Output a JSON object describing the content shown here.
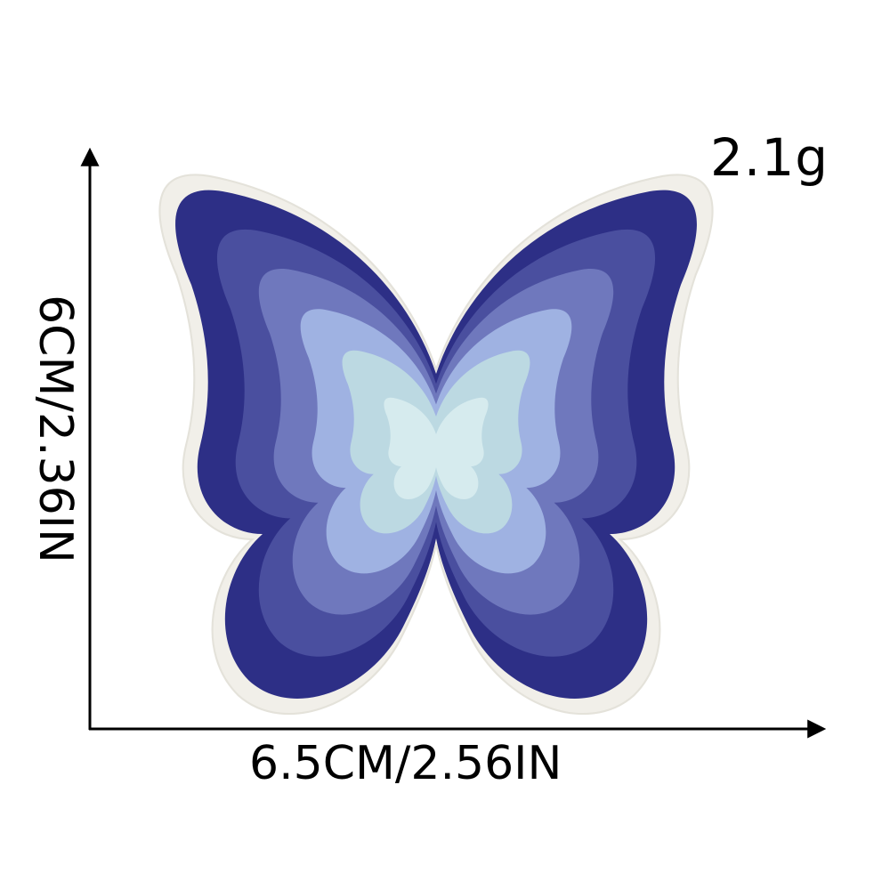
{
  "product": {
    "weight": "2.1g",
    "width_label": "6.5CM/2.56IN",
    "height_label": "6CM/2.36IN",
    "image": "butterfly-embroidered-patch"
  },
  "colors": {
    "background": "#ffffff",
    "border": "#f1efe9",
    "band_1": "#2d2f86",
    "band_2": "#4a4f9f",
    "band_3": "#6f78bd",
    "band_4": "#9fb2e2",
    "band_5": "#bcd9e2",
    "center": "#d6ebee"
  }
}
